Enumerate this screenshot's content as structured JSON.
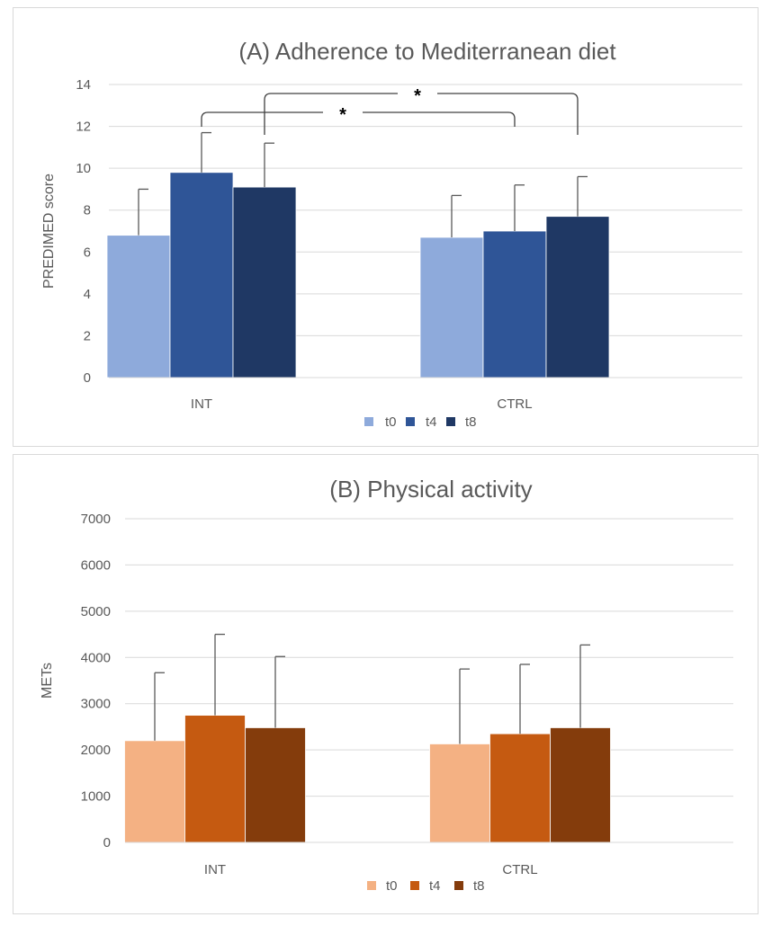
{
  "chart_data": [
    {
      "type": "bar",
      "title": "(A) Adherence to Mediterranean diet",
      "xlabel": "",
      "ylabel": "PREDIMED score",
      "ylim": [
        0,
        14
      ],
      "yticks": [
        0,
        2,
        4,
        6,
        8,
        10,
        12,
        14
      ],
      "grid": true,
      "legend_position": "bottom",
      "categories": [
        "INT",
        "CTRL"
      ],
      "series": [
        {
          "name": "t0",
          "color": "#8eaadb",
          "values": [
            6.8,
            6.7
          ],
          "errors": [
            2.2,
            2.0
          ]
        },
        {
          "name": "t4",
          "color": "#2f5597",
          "values": [
            9.8,
            7.0
          ],
          "errors": [
            1.9,
            2.2
          ]
        },
        {
          "name": "t8",
          "color": "#1f3864",
          "values": [
            9.1,
            7.7
          ],
          "errors": [
            2.1,
            1.9
          ]
        }
      ],
      "significance": [
        {
          "label": "*",
          "from": {
            "category": 0,
            "series": 1
          },
          "to": {
            "category": 1,
            "series": 1
          }
        },
        {
          "label": "*",
          "from": {
            "category": 0,
            "series": 2
          },
          "to": {
            "category": 1,
            "series": 2
          }
        }
      ]
    },
    {
      "type": "bar",
      "title": "(B) Physical activity",
      "xlabel": "",
      "ylabel": "METs",
      "ylim": [
        0,
        7000
      ],
      "yticks": [
        0,
        1000,
        2000,
        3000,
        4000,
        5000,
        6000,
        7000
      ],
      "grid": true,
      "legend_position": "bottom",
      "categories": [
        "INT",
        "CTRL"
      ],
      "series": [
        {
          "name": "t0",
          "color": "#f4b183",
          "values": [
            2200,
            2130
          ],
          "errors": [
            1470,
            1620
          ]
        },
        {
          "name": "t4",
          "color": "#c55a11",
          "values": [
            2750,
            2350
          ],
          "errors": [
            1750,
            1500
          ]
        },
        {
          "name": "t8",
          "color": "#843c0c",
          "values": [
            2480,
            2480
          ],
          "errors": [
            1540,
            1790
          ]
        }
      ],
      "significance": []
    }
  ]
}
